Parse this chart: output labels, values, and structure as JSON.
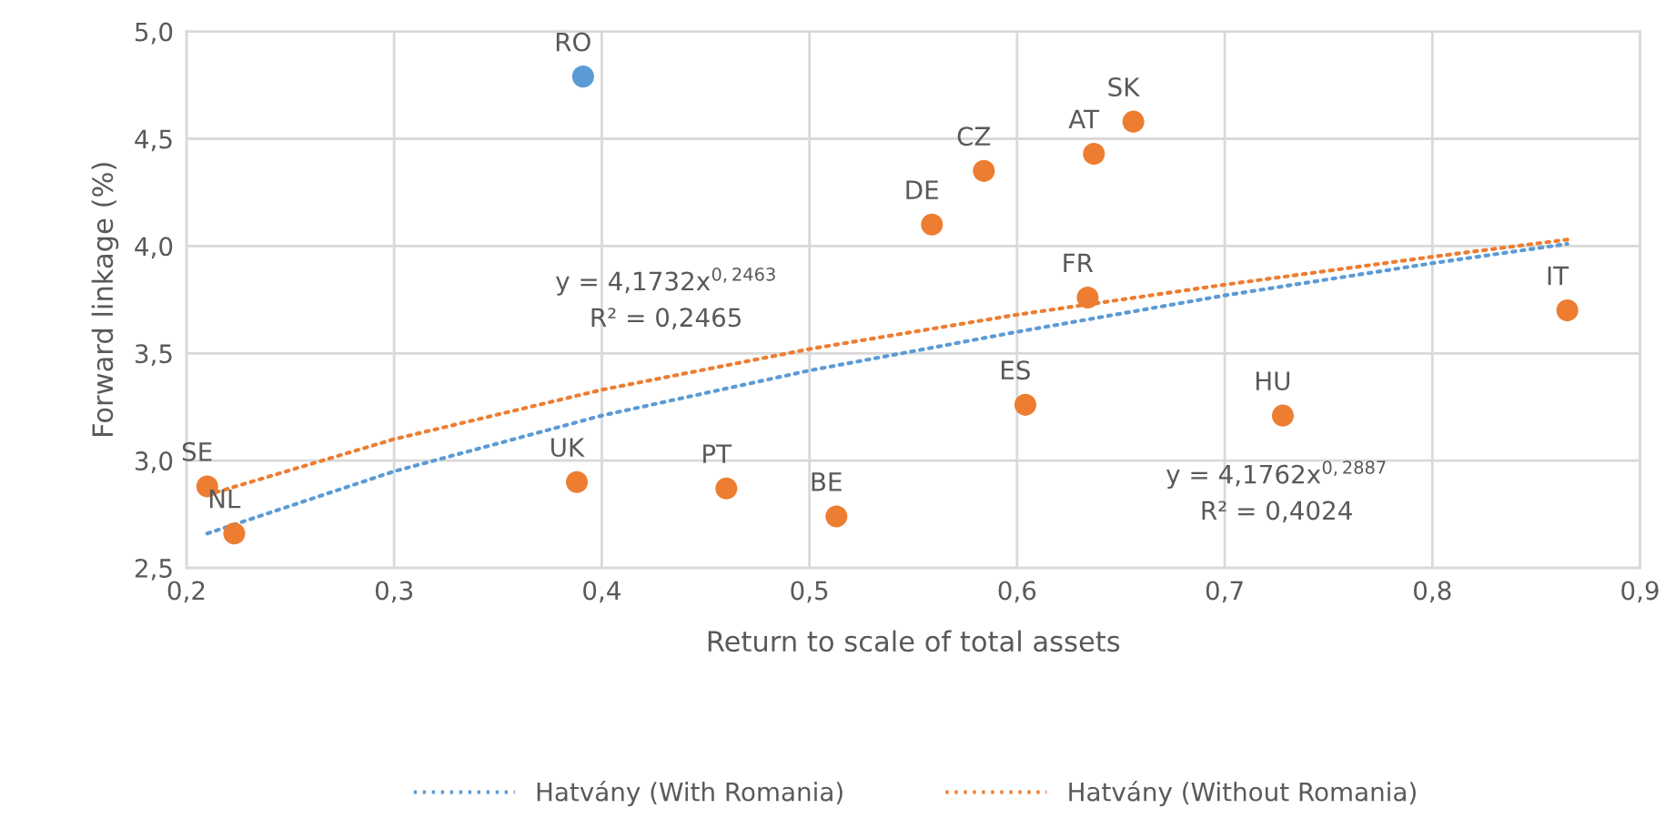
{
  "chart_data": {
    "type": "scatter",
    "xlabel": "Return to scale of total assets",
    "ylabel": "Forward linkage (%)",
    "xlim": [
      0.2,
      0.9
    ],
    "ylim": [
      2.5,
      5.0
    ],
    "xticks": [
      {
        "value": 0.2,
        "label": "0,2"
      },
      {
        "value": 0.3,
        "label": "0,3"
      },
      {
        "value": 0.4,
        "label": "0,4"
      },
      {
        "value": 0.5,
        "label": "0,5"
      },
      {
        "value": 0.6,
        "label": "0,6"
      },
      {
        "value": 0.7,
        "label": "0,7"
      },
      {
        "value": 0.8,
        "label": "0,8"
      },
      {
        "value": 0.9,
        "label": "0,9"
      }
    ],
    "yticks": [
      {
        "value": 2.5,
        "label": "2,5"
      },
      {
        "value": 3.0,
        "label": "3,0"
      },
      {
        "value": 3.5,
        "label": "3,5"
      },
      {
        "value": 4.0,
        "label": "4,0"
      },
      {
        "value": 4.5,
        "label": "4,5"
      },
      {
        "value": 5.0,
        "label": "5,0"
      }
    ],
    "grid": true,
    "legend": "bottom",
    "series": [
      {
        "color": "#5b9bd5",
        "marker": "circle",
        "x": [
          0.391
        ],
        "values": [
          4.79
        ]
      },
      {
        "color": "#ed7d31",
        "marker": "circle",
        "x": [
          0.21,
          0.223,
          0.388,
          0.46,
          0.513,
          0.604,
          0.559,
          0.584,
          0.637,
          0.656,
          0.634,
          0.728,
          0.865
        ],
        "values": [
          2.88,
          2.66,
          2.9,
          2.87,
          2.74,
          3.26,
          4.1,
          4.35,
          4.43,
          4.58,
          3.76,
          3.21,
          3.7
        ]
      },
      {
        "type": "line",
        "name": "Hatvány (With Romania)",
        "color": "#5b9bd5",
        "line_style": "dotted",
        "x": [
          0.21,
          0.3,
          0.4,
          0.5,
          0.6,
          0.7,
          0.8,
          0.865
        ],
        "values": [
          2.66,
          2.95,
          3.21,
          3.42,
          3.6,
          3.77,
          3.92,
          4.01
        ]
      },
      {
        "type": "line",
        "name": "Hatvány (Without Romania)",
        "color": "#ed7d31",
        "line_style": "dotted",
        "x": [
          0.21,
          0.3,
          0.4,
          0.5,
          0.6,
          0.7,
          0.8,
          0.865
        ],
        "values": [
          2.84,
          3.1,
          3.33,
          3.52,
          3.68,
          3.82,
          3.95,
          4.03
        ]
      }
    ],
    "annotations": [
      {
        "text": "RO",
        "x": 0.391,
        "y": 4.79
      },
      {
        "text": "SE",
        "x": 0.21,
        "y": 2.88
      },
      {
        "text": "NL",
        "x": 0.223,
        "y": 2.66
      },
      {
        "text": "UK",
        "x": 0.388,
        "y": 2.9
      },
      {
        "text": "PT",
        "x": 0.46,
        "y": 2.87
      },
      {
        "text": "BE",
        "x": 0.513,
        "y": 2.74
      },
      {
        "text": "ES",
        "x": 0.604,
        "y": 3.26
      },
      {
        "text": "DE",
        "x": 0.559,
        "y": 4.1
      },
      {
        "text": "CZ",
        "x": 0.584,
        "y": 4.35
      },
      {
        "text": "AT",
        "x": 0.637,
        "y": 4.43
      },
      {
        "text": "SK",
        "x": 0.656,
        "y": 4.58
      },
      {
        "text": "FR",
        "x": 0.634,
        "y": 3.76
      },
      {
        "text": "HU",
        "x": 0.728,
        "y": 3.21
      },
      {
        "text": "IT",
        "x": 0.865,
        "y": 3.7
      },
      "y = 4,1732x$^{0,2463}$\nR² = 0,2465",
      "y = 4,1762x$^{0,2887}$\nR² = 0,4024"
    ]
  }
}
